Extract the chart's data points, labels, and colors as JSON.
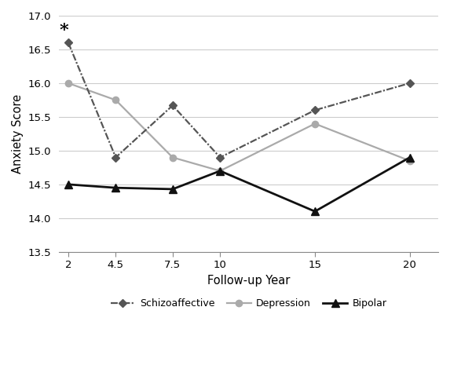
{
  "x": [
    2,
    4.5,
    7.5,
    10,
    15,
    20
  ],
  "schizoaffective": [
    16.6,
    14.9,
    15.67,
    14.9,
    15.6,
    16.0
  ],
  "depression": [
    16.0,
    15.75,
    14.9,
    14.7,
    15.4,
    14.85
  ],
  "bipolar": [
    14.5,
    14.45,
    14.43,
    14.7,
    14.1,
    14.9
  ],
  "schizoaffective_color": "#555555",
  "depression_color": "#aaaaaa",
  "bipolar_color": "#111111",
  "xlabel": "Follow-up Year",
  "ylabel": "Anxiety Score",
  "ylim": [
    13.5,
    17.0
  ],
  "xlim": [
    1.5,
    21.5
  ],
  "xticks": [
    2,
    4.5,
    7.5,
    10,
    15,
    20
  ],
  "yticks": [
    13.5,
    14.0,
    14.5,
    15.0,
    15.5,
    16.0,
    16.5,
    17.0
  ],
  "star_x": 1.75,
  "star_y": 16.78,
  "legend_labels": [
    "Schizoaffective",
    "Depression",
    "Bipolar"
  ],
  "background_color": "#ffffff",
  "grid_color": "#cccccc"
}
